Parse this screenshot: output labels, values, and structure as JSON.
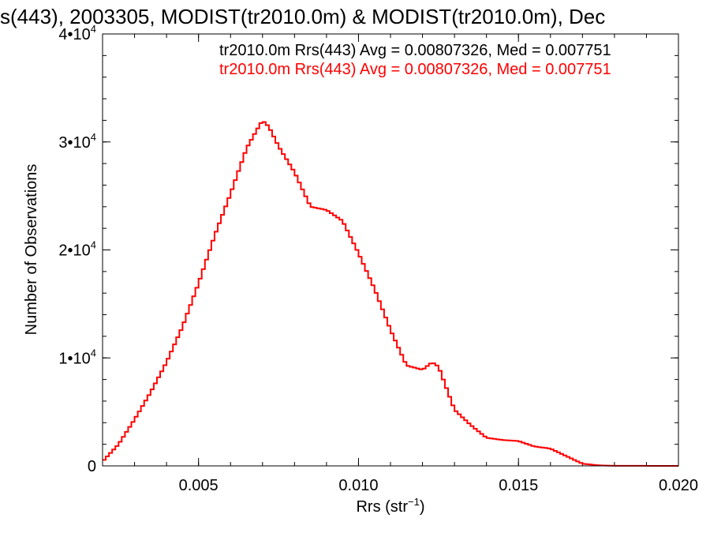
{
  "chart_data": {
    "type": "line",
    "title": "s(443), 2003305, MODIST(tr2010.0m) & MODIST(tr2010.0m), Dec",
    "xlabel": "Rrs (str",
    "xlabel_sup": "−1",
    "xlabel_close": ")",
    "ylabel": "Number of Observations",
    "xlim": [
      0.002,
      0.02
    ],
    "ylim": [
      0,
      40000
    ],
    "x_ticks": [
      {
        "value": 0.005,
        "label": "0.005"
      },
      {
        "value": 0.01,
        "label": "0.010"
      },
      {
        "value": 0.015,
        "label": "0.015"
      },
      {
        "value": 0.02,
        "label": "0.020"
      }
    ],
    "y_ticks": [
      {
        "value": 0,
        "base": "0",
        "exp": ""
      },
      {
        "value": 10000,
        "base": "1•10",
        "exp": "4"
      },
      {
        "value": 20000,
        "base": "2•10",
        "exp": "4"
      },
      {
        "value": 30000,
        "base": "3•10",
        "exp": "4"
      },
      {
        "value": 40000,
        "base": "4•10",
        "exp": "4"
      }
    ],
    "grid": false,
    "legend_position": "top-right",
    "annotations": [
      {
        "text": "tr2010.0m Rrs(443) Avg = 0.00807326, Med = 0.007751",
        "color": "#000000"
      },
      {
        "text": "tr2010.0m Rrs(443) Avg = 0.00807326, Med = 0.007751",
        "color": "#ff0000"
      }
    ],
    "series": [
      {
        "color": "#ff0000",
        "style": "step",
        "x": [
          0.002,
          0.0025,
          0.003,
          0.0035,
          0.004,
          0.0045,
          0.005,
          0.0055,
          0.006,
          0.0065,
          0.0068,
          0.007,
          0.0072,
          0.0075,
          0.008,
          0.0085,
          0.009,
          0.0095,
          0.01,
          0.0105,
          0.011,
          0.0115,
          0.012,
          0.0123,
          0.0125,
          0.013,
          0.0135,
          0.014,
          0.0145,
          0.015,
          0.0155,
          0.016,
          0.0165,
          0.017,
          0.0175,
          0.018,
          0.02
        ],
        "y": [
          400,
          2000,
          4300,
          6800,
          9600,
          12900,
          16900,
          21300,
          25200,
          29400,
          31000,
          32000,
          31400,
          29600,
          27200,
          24000,
          23700,
          22700,
          19700,
          16400,
          12600,
          9300,
          8900,
          9600,
          9200,
          5200,
          3800,
          2600,
          2400,
          2300,
          1800,
          1600,
          900,
          200,
          50,
          10,
          0
        ]
      }
    ]
  }
}
